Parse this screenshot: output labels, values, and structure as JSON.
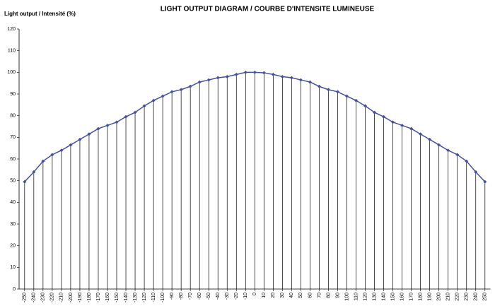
{
  "chart_data": {
    "type": "line",
    "title": "LIGHT OUTPUT DIAGRAM / COURBE D'INTENSITE LUMINEUSE",
    "y_label": "Light output / Intensité (%)",
    "x": [
      -250,
      -240,
      -230,
      -220,
      -210,
      -200,
      -190,
      -180,
      -170,
      -160,
      -150,
      -140,
      -130,
      -120,
      -110,
      -100,
      -90,
      -80,
      -70,
      -60,
      -50,
      -40,
      -30,
      -20,
      -10,
      0,
      10,
      20,
      30,
      40,
      50,
      60,
      70,
      80,
      90,
      100,
      110,
      120,
      130,
      140,
      150,
      160,
      170,
      180,
      190,
      200,
      210,
      220,
      230,
      240,
      250
    ],
    "series": [
      {
        "color": "#44509a",
        "values": [
          49.5,
          54,
          59,
          62,
          64,
          66.5,
          69,
          71.5,
          74,
          75.5,
          77,
          79.5,
          81.5,
          84.5,
          87,
          89,
          91,
          92,
          93.5,
          95.5,
          96.5,
          97.5,
          98,
          99,
          100,
          100,
          99.8,
          99,
          98,
          97.5,
          96.5,
          95.5,
          93.5,
          92,
          91,
          89,
          87,
          84.5,
          81.5,
          79.5,
          77,
          75.5,
          74,
          71.5,
          69,
          66.5,
          64,
          62,
          59,
          54,
          49.5
        ]
      }
    ],
    "xlim": [
      -256,
      256
    ],
    "xticks": [
      -250,
      -240,
      -230,
      -220,
      -210,
      -200,
      -190,
      -180,
      -170,
      -160,
      -150,
      -140,
      -130,
      -120,
      -110,
      -100,
      -90,
      -80,
      -70,
      -60,
      -50,
      -40,
      -30,
      -20,
      -10,
      0,
      10,
      20,
      30,
      40,
      50,
      60,
      70,
      80,
      90,
      100,
      110,
      120,
      130,
      140,
      150,
      160,
      170,
      180,
      190,
      200,
      210,
      220,
      230,
      240,
      250
    ],
    "ylim": [
      0,
      120
    ],
    "yticks": [
      0,
      10,
      20,
      30,
      40,
      50,
      60,
      70,
      80,
      90,
      100,
      110,
      120
    ],
    "drop_lines": true
  }
}
